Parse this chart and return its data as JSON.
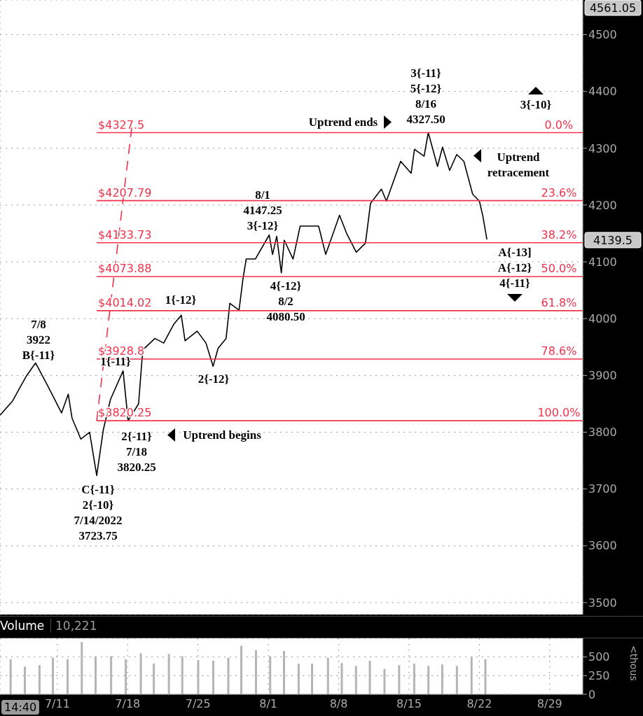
{
  "chart_data": [
    {
      "type": "line",
      "tick_labels": "y",
      "grid": true,
      "xlim": [
        "--07-05T07:00",
        "--09-01T07:00"
      ],
      "xticks": [
        {
          "value": "--07-11",
          "label": null
        },
        {
          "value": "--07-18",
          "label": null
        },
        {
          "value": "--07-25",
          "label": null
        },
        {
          "value": "--08-01",
          "label": null
        },
        {
          "value": "--08-08",
          "label": null
        },
        {
          "value": "--08-15",
          "label": null
        },
        {
          "value": "--08-22",
          "label": null
        },
        {
          "value": "--08-29",
          "label": null
        }
      ],
      "ylim": [
        3479,
        4561.05
      ],
      "yticks": [
        3500,
        3600,
        3700,
        3800,
        3900,
        4000,
        4100,
        4200,
        4300,
        4400,
        4500
      ],
      "series": [
        {
          "color": "#000000",
          "x": [
            "--07-05T07:00",
            "--07-06T13:00",
            "--07-07T22:00",
            "--07-08T20:00",
            "--07-10T00:00",
            "--07-11T10:00",
            "--07-12T02:00",
            "--07-12T11:00",
            "--07-13T08:00",
            "--07-14T05:00",
            "--07-14T22:00",
            "--07-15T14:00",
            "--07-16T07:00",
            "--07-17T13:00",
            "--07-18T01:00",
            "--07-19T02:00",
            "--07-19T12:00",
            "--07-20T17:00",
            "--07-21T14:00",
            "--07-22T14:00",
            "--07-23T08:00",
            "--07-23T17:00",
            "--07-24T22:00",
            "--07-25T19:00",
            "--07-26T12:00",
            "--07-27T00:00",
            "--07-27T19:00",
            "--07-28T04:00",
            "--07-29T02:00",
            "--07-29T11:00",
            "--07-29T19:00",
            "--07-30T17:00",
            "--08-01T02:00",
            "--08-01T10:00",
            "--08-01T20:00",
            "--08-02T07:00",
            "--08-02T14:00",
            "--08-03T11:00",
            "--08-04T04:00",
            "--08-06T00:00",
            "--08-06T17:00",
            "--08-08T02:00",
            "--08-08T19:00",
            "--08-09T18:00",
            "--08-10T16:00",
            "--08-11T04:00",
            "--08-12T06:00",
            "--08-12T18:00",
            "--08-14T04:00",
            "--08-15T05:00",
            "--08-15T13:00",
            "--08-16T12:00",
            "--08-16T22:00",
            "--08-17T20:00",
            "--08-18T08:00",
            "--08-19T01:00",
            "--08-19T18:00",
            "--08-20T11:00",
            "--08-21T08:00",
            "--08-22T00:00",
            "--08-22T08:00",
            "--08-22T18:00"
          ],
          "values": [
            3830,
            3855,
            3899,
            3922,
            3883,
            3834,
            3867,
            3825,
            3788,
            3800,
            3723.75,
            3805,
            3858,
            3908,
            3820.25,
            3850,
            3945,
            3965,
            3957,
            3990,
            4006,
            3961,
            3978,
            3957,
            3916,
            3948,
            3965,
            4027,
            4015,
            4068,
            4105,
            4105,
            4147.25,
            4113,
            4145,
            4080.5,
            4138,
            4105,
            4163,
            4163,
            4113,
            4182,
            4150,
            4117,
            4133,
            4203,
            4228,
            4207,
            4277,
            4256,
            4298,
            4286,
            4327.5,
            4268,
            4302,
            4261,
            4289,
            4277,
            4219,
            4207,
            4182,
            4139.5
          ]
        },
        {
          "name": "$4327.5",
          "color": "#f0324a",
          "x": [
            "--07-14T22:00",
            "--09-01T07:00"
          ],
          "values": [
            4327.5,
            4327.5
          ]
        },
        {
          "name": "$4207.79",
          "color": "#f0324a",
          "x": [
            "--07-14T22:00",
            "--09-01T07:00"
          ],
          "values": [
            4207.79,
            4207.79
          ]
        },
        {
          "name": "$4133.73",
          "color": "#f0324a",
          "x": [
            "--07-14T22:00",
            "--09-01T07:00"
          ],
          "values": [
            4133.73,
            4133.73
          ]
        },
        {
          "name": "$4073.88",
          "color": "#f0324a",
          "x": [
            "--07-14T22:00",
            "--09-01T07:00"
          ],
          "values": [
            4073.88,
            4073.88
          ]
        },
        {
          "name": "$4014.02",
          "color": "#f0324a",
          "x": [
            "--07-14T22:00",
            "--09-01T07:00"
          ],
          "values": [
            4014.02,
            4014.02
          ]
        },
        {
          "name": "$3928.8",
          "color": "#f0324a",
          "x": [
            "--07-14T22:00",
            "--09-01T07:00"
          ],
          "values": [
            3928.8,
            3928.8
          ]
        },
        {
          "name": "$3820.25",
          "color": "#f0324a",
          "x": [
            "--07-14T22:00",
            "--09-01T07:00"
          ],
          "values": [
            3820.25,
            3820.25
          ]
        },
        {
          "color": "#f0324a",
          "line_style": "dashed",
          "x": [
            "--07-14T22:00",
            "--07-18T11:00"
          ],
          "values": [
            3820.25,
            4345
          ]
        }
      ],
      "annotations": [
        "7/8\n3922\nB{-11}",
        "1{-11}",
        "2{-11}\n7/18\n3820.25",
        "C{-11}\n2{-10}\n7/14/2022\n3723.75",
        "1{-12}",
        "2{-12}",
        "8/1\n4147.25\n3{-12}",
        "4{-12}\n8/2\n4080.50",
        "3{-11}\n5{-12}\n8/16\n4327.50",
        "Uptrend ends",
        "Uptrend\nretracement",
        "3{-10}",
        "A{-13]\nA{-12}\n4{-11}",
        "Uptrend begins",
        "4561.05",
        "4139.5",
        {
          "text": "0.0%",
          "x": "--08-29T22:00",
          "y": 4327.5
        },
        {
          "text": "23.6%",
          "x": "--08-29T22:00",
          "y": 4207.79
        },
        {
          "text": "38.2%",
          "x": "--08-29T22:00",
          "y": 4133.73
        },
        {
          "text": "50.0%",
          "x": "--08-29T22:00",
          "y": 4073.88
        },
        {
          "text": "61.8%",
          "x": "--08-29T22:00",
          "y": 4014.02
        },
        {
          "text": "78.6%",
          "x": "--08-29T22:00",
          "y": 3928.8
        },
        {
          "text": "100.0%",
          "x": "--08-29T22:00",
          "y": 3820.25
        }
      ]
    },
    {
      "type": "bar",
      "title": "Volume",
      "ylabel": "<thous",
      "grid": true,
      "color": "#b4b4b4",
      "xlim": [
        "--07-05T07:00",
        "--09-01T07:00"
      ],
      "xticks": [
        {
          "value": "--07-11",
          "label": "7/11"
        },
        {
          "value": "--07-18",
          "label": "7/18"
        },
        {
          "value": "--07-25",
          "label": "7/25"
        },
        {
          "value": "--08-01",
          "label": "8/1"
        },
        {
          "value": "--08-08",
          "label": "8/8"
        },
        {
          "value": "--08-15",
          "label": "8/15"
        },
        {
          "value": "--08-22",
          "label": "8/22"
        },
        {
          "value": "--08-29",
          "label": "8/29"
        }
      ],
      "ylim": [
        0,
        750
      ],
      "yticks": [
        0,
        250,
        500
      ],
      "x": [
        "--07-06T08:00",
        "--07-07T18:00",
        "--07-09T05:00",
        "--07-10T13:00",
        "--07-12T00:00",
        "--07-13T10:00",
        "--07-14T19:00",
        "--07-16T08:00",
        "--07-17T19:00",
        "--07-19T07:00",
        "--07-20T14:00",
        "--07-22T02:00",
        "--07-23T10:00",
        "--07-25T00:00",
        "--07-26T12:00",
        "--07-28T00:00",
        "--07-29T07:00",
        "--07-30T18:00",
        "--08-01T04:00",
        "--08-02T13:00",
        "--08-04T00:00",
        "--08-05T08:00",
        "--08-06T22:00",
        "--08-08T07:00",
        "--08-09T17:00",
        "--08-11T02:00",
        "--08-12T13:00",
        "--08-14T00:00",
        "--08-15T12:00",
        "--08-16T22:00",
        "--08-18T07:00",
        "--08-19T18:00",
        "--08-21T05:00",
        "--08-22T14:00"
      ],
      "values": [
        470,
        370,
        390,
        490,
        470,
        700,
        510,
        510,
        470,
        550,
        410,
        540,
        510,
        460,
        450,
        490,
        650,
        590,
        510,
        580,
        410,
        410,
        490,
        420,
        380,
        450,
        340,
        390,
        410,
        380,
        400,
        380,
        500,
        470
      ],
      "annotations": [
        "10,221",
        "14:40"
      ]
    }
  ]
}
